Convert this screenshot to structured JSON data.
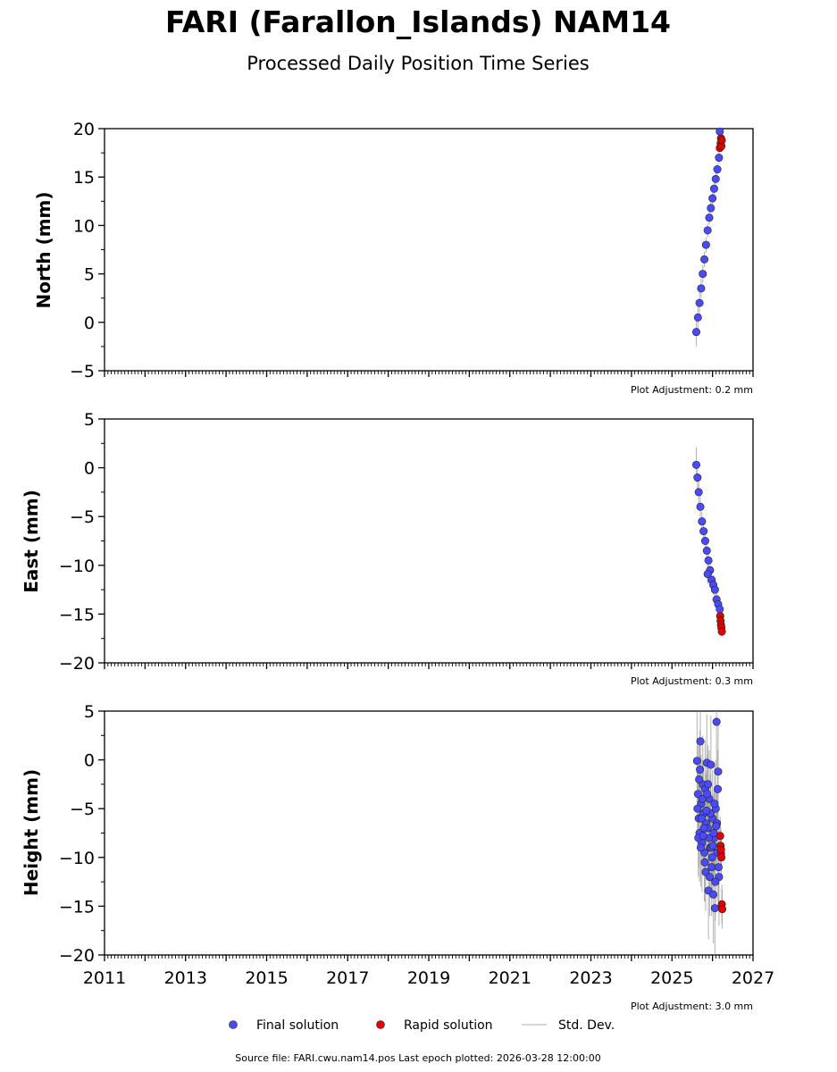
{
  "title": "FARI (Farallon_Islands) NAM14",
  "subtitle": "Processed Daily Position Time Series",
  "footer": "Source file: FARI.cwu.nam14.pos  Last epoch plotted: 2026-03-28 12:00:00",
  "legend": [
    {
      "label": "Final solution",
      "kind": "marker",
      "color": "#4a4aff"
    },
    {
      "label": "Rapid solution",
      "kind": "marker",
      "color": "#e00000"
    },
    {
      "label": "Std. Dev.",
      "kind": "line",
      "color": "#c8c8c8"
    }
  ],
  "colors": {
    "final": "#4a4aff",
    "rapid": "#e00000",
    "stddev": "#9a9a9a"
  },
  "chart_data": [
    {
      "type": "scatter",
      "ylabel": "North (mm)",
      "xlim": [
        2011,
        2027
      ],
      "ylim": [
        -5,
        20
      ],
      "xticks": [
        2011,
        2013,
        2015,
        2017,
        2019,
        2021,
        2023,
        2025,
        2027
      ],
      "yticks": [
        -5,
        0,
        5,
        10,
        15,
        20
      ],
      "adjustment": "Plot Adjustment: 0.2 mm",
      "series": [
        {
          "name": "Final solution",
          "x": [
            2025.6,
            2025.64,
            2025.68,
            2025.72,
            2025.76,
            2025.8,
            2025.84,
            2025.88,
            2025.92,
            2025.96,
            2026.0,
            2026.04,
            2026.08,
            2026.12,
            2026.16,
            2026.18
          ],
          "y": [
            -1.0,
            0.5,
            2.0,
            3.5,
            5.0,
            6.5,
            8.0,
            9.5,
            10.8,
            11.8,
            12.8,
            13.8,
            14.8,
            15.8,
            17.0,
            19.7
          ],
          "err": [
            1.5,
            1.4,
            1.2,
            1.0,
            0.9,
            0.8,
            0.8,
            0.7,
            0.7,
            0.6,
            0.6,
            0.6,
            0.6,
            0.6,
            0.6,
            0.6
          ]
        },
        {
          "name": "Rapid solution",
          "x": [
            2026.18,
            2026.2,
            2026.21,
            2026.22,
            2026.23
          ],
          "y": [
            18.0,
            18.5,
            19.0,
            18.2,
            18.8
          ],
          "err": [
            0.4,
            0.4,
            0.4,
            0.4,
            0.4
          ]
        }
      ]
    },
    {
      "type": "scatter",
      "ylabel": "East (mm)",
      "xlim": [
        2011,
        2027
      ],
      "ylim": [
        -20,
        5
      ],
      "xticks": [
        2011,
        2013,
        2015,
        2017,
        2019,
        2021,
        2023,
        2025,
        2027
      ],
      "yticks": [
        -20,
        -15,
        -10,
        -5,
        0,
        5
      ],
      "adjustment": "Plot Adjustment: 0.3 mm",
      "series": [
        {
          "name": "Final solution",
          "x": [
            2025.6,
            2025.63,
            2025.66,
            2025.7,
            2025.74,
            2025.78,
            2025.82,
            2025.86,
            2025.9,
            2025.94,
            2025.98,
            2026.02,
            2026.06,
            2026.1,
            2026.14,
            2026.18,
            2025.88
          ],
          "y": [
            0.3,
            -1.0,
            -2.5,
            -4.0,
            -5.5,
            -6.5,
            -7.5,
            -8.5,
            -9.5,
            -10.5,
            -11.5,
            -12.0,
            -12.5,
            -13.5,
            -14.0,
            -14.5,
            -10.9
          ],
          "err": [
            1.8,
            1.5,
            1.3,
            1.1,
            1.0,
            0.9,
            0.9,
            0.9,
            0.9,
            1.0,
            1.0,
            1.0,
            1.0,
            1.0,
            1.0,
            1.0,
            1.0
          ]
        },
        {
          "name": "Rapid solution",
          "x": [
            2026.19,
            2026.2,
            2026.21,
            2026.22,
            2026.23
          ],
          "y": [
            -15.2,
            -15.7,
            -16.1,
            -16.4,
            -16.8
          ],
          "err": [
            0.6,
            0.6,
            0.6,
            0.6,
            0.6
          ]
        }
      ]
    },
    {
      "type": "scatter",
      "ylabel": "Height (mm)",
      "xlim": [
        2011,
        2027
      ],
      "ylim": [
        -20,
        5
      ],
      "xticks": [
        2011,
        2013,
        2015,
        2017,
        2019,
        2021,
        2023,
        2025,
        2027
      ],
      "yticks": [
        -20,
        -15,
        -10,
        -5,
        0,
        5
      ],
      "adjustment": "Plot Adjustment: 3.0 mm",
      "series": [
        {
          "name": "Final solution",
          "x": [
            2025.62,
            2025.64,
            2025.66,
            2025.68,
            2025.7,
            2025.72,
            2025.74,
            2025.76,
            2025.78,
            2025.8,
            2025.82,
            2025.84,
            2025.86,
            2025.88,
            2025.9,
            2025.92,
            2025.94,
            2025.96,
            2025.98,
            2026.0,
            2026.02,
            2026.04,
            2026.06,
            2026.08,
            2026.1,
            2026.12,
            2026.14,
            2026.16,
            2025.63,
            2025.67,
            2025.71,
            2025.75,
            2025.79,
            2025.83,
            2025.87,
            2025.91,
            2025.95,
            2025.99,
            2026.03,
            2026.07,
            2026.11,
            2026.15,
            2025.65,
            2025.73,
            2025.81,
            2025.89,
            2025.97,
            2026.05,
            2026.13,
            2025.69,
            2025.77,
            2025.85,
            2025.93,
            2026.01,
            2026.09
          ],
          "y": [
            -0.1,
            -3.5,
            -6.0,
            -7.5,
            1.9,
            -4.5,
            -8.5,
            -2.5,
            -5.5,
            -9.5,
            -3.0,
            -6.5,
            -0.3,
            -7.0,
            -13.4,
            -4.0,
            -9.0,
            -0.5,
            -11.0,
            -6.0,
            -13.8,
            -8.0,
            -15.2,
            -5.0,
            3.9,
            -9.5,
            -1.2,
            -12.0,
            -5.0,
            -2.0,
            -9.0,
            -4.0,
            -7.0,
            -11.5,
            -3.5,
            -8.0,
            -5.5,
            -10.0,
            -7.5,
            -12.5,
            -6.5,
            -11.0,
            -8.0,
            -6.0,
            -10.5,
            -2.5,
            -9.0,
            -4.5,
            -3.0,
            -1.0,
            -7.8,
            -5.2,
            -12.0,
            -8.8,
            -6.8
          ],
          "err": [
            5,
            5,
            5,
            5,
            5,
            5,
            5,
            5,
            5,
            5,
            5,
            5,
            5,
            5,
            5,
            5,
            5,
            5,
            5,
            5,
            5,
            5,
            5,
            5,
            5,
            5,
            5,
            5,
            4,
            4,
            4,
            4,
            4,
            4,
            4,
            4,
            4,
            4,
            4,
            4,
            4,
            4,
            4,
            4,
            4,
            4,
            4,
            4,
            4,
            4,
            4,
            4,
            4,
            4,
            4
          ]
        },
        {
          "name": "Rapid solution",
          "x": [
            2026.19,
            2026.2,
            2026.21,
            2026.22,
            2026.23,
            2026.24,
            2026.21
          ],
          "y": [
            -7.8,
            -8.8,
            -9.6,
            -10.0,
            -14.8,
            -15.3,
            -9.2
          ],
          "err": [
            2,
            2,
            2,
            2,
            2,
            2,
            2
          ]
        }
      ]
    }
  ]
}
